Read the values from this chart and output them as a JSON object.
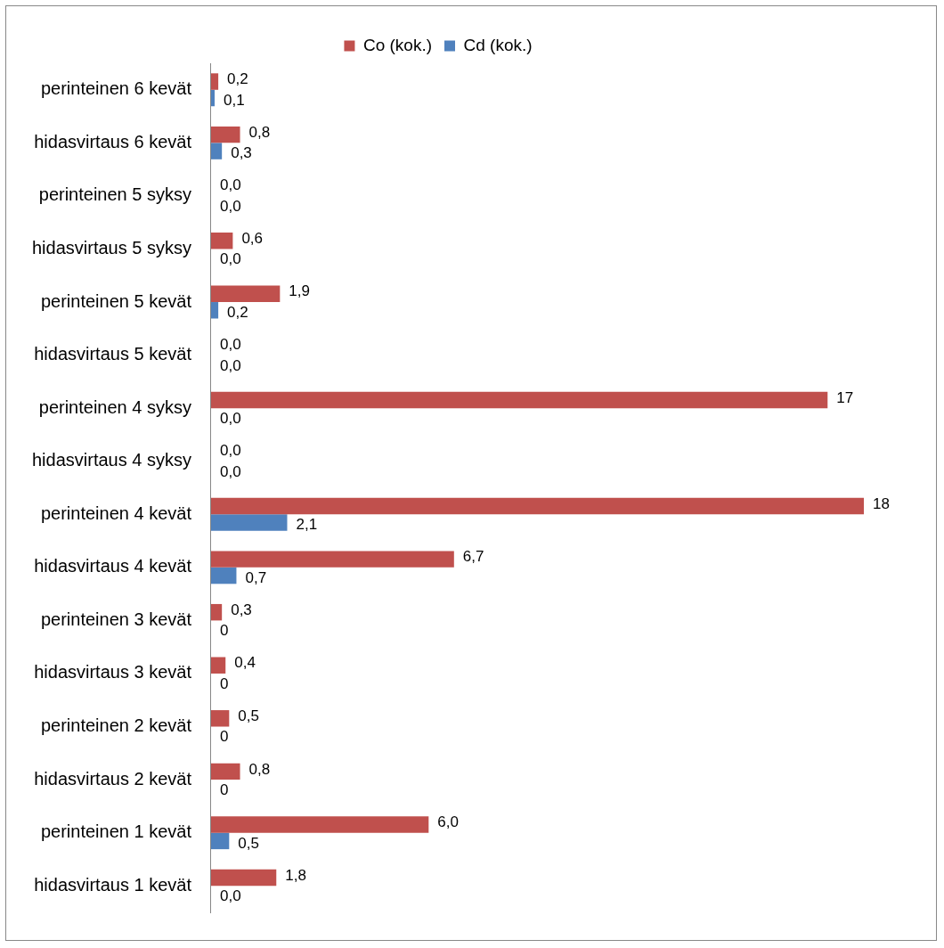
{
  "chart_data": {
    "type": "bar",
    "orientation": "horizontal",
    "legend": "top",
    "tick_labels": "y",
    "grid": false,
    "categories": [
      "perinteinen 6 kevät",
      "hidasvirtaus 6 kevät",
      "perinteinen 5 syksy",
      "hidasvirtaus 5 syksy",
      "perinteinen 5 kevät",
      "hidasvirtaus 5 kevät",
      "perinteinen 4 syksy",
      "hidasvirtaus 4 syksy",
      "perinteinen 4 kevät",
      "hidasvirtaus 4 kevät",
      "perinteinen 3 kevät",
      "hidasvirtaus 3 kevät",
      "perinteinen 2 kevät",
      "hidasvirtaus 2 kevät",
      "perinteinen 1 kevät",
      "hidasvirtaus 1 kevät"
    ],
    "series": [
      {
        "name": "Co (kok.)",
        "color": "#c0504d",
        "values": [
          0.2,
          0.8,
          0.0,
          0.6,
          1.9,
          0.0,
          17,
          0.0,
          18,
          6.7,
          0.3,
          0.4,
          0.5,
          0.8,
          6.0,
          1.8
        ],
        "value_labels": [
          "0,2",
          "0,8",
          "0,0",
          "0,6",
          "1,9",
          "0,0",
          "17",
          "0,0",
          "18",
          "6,7",
          "0,3",
          "0,4",
          "0,5",
          "0,8",
          "6,0",
          "1,8"
        ]
      },
      {
        "name": "Cd (kok.)",
        "color": "#4f81bd",
        "values": [
          0.1,
          0.3,
          0.0,
          0.0,
          0.2,
          0.0,
          0.0,
          0.0,
          2.1,
          0.7,
          0,
          0,
          0,
          0,
          0.5,
          0.0
        ],
        "value_labels": [
          "0,1",
          "0,3",
          "0,0",
          "0,0",
          "0,2",
          "0,0",
          "0,0",
          "0,0",
          "2,1",
          "0,7",
          "0",
          "0",
          "0",
          "0",
          "0,5",
          "0,0"
        ]
      }
    ]
  }
}
